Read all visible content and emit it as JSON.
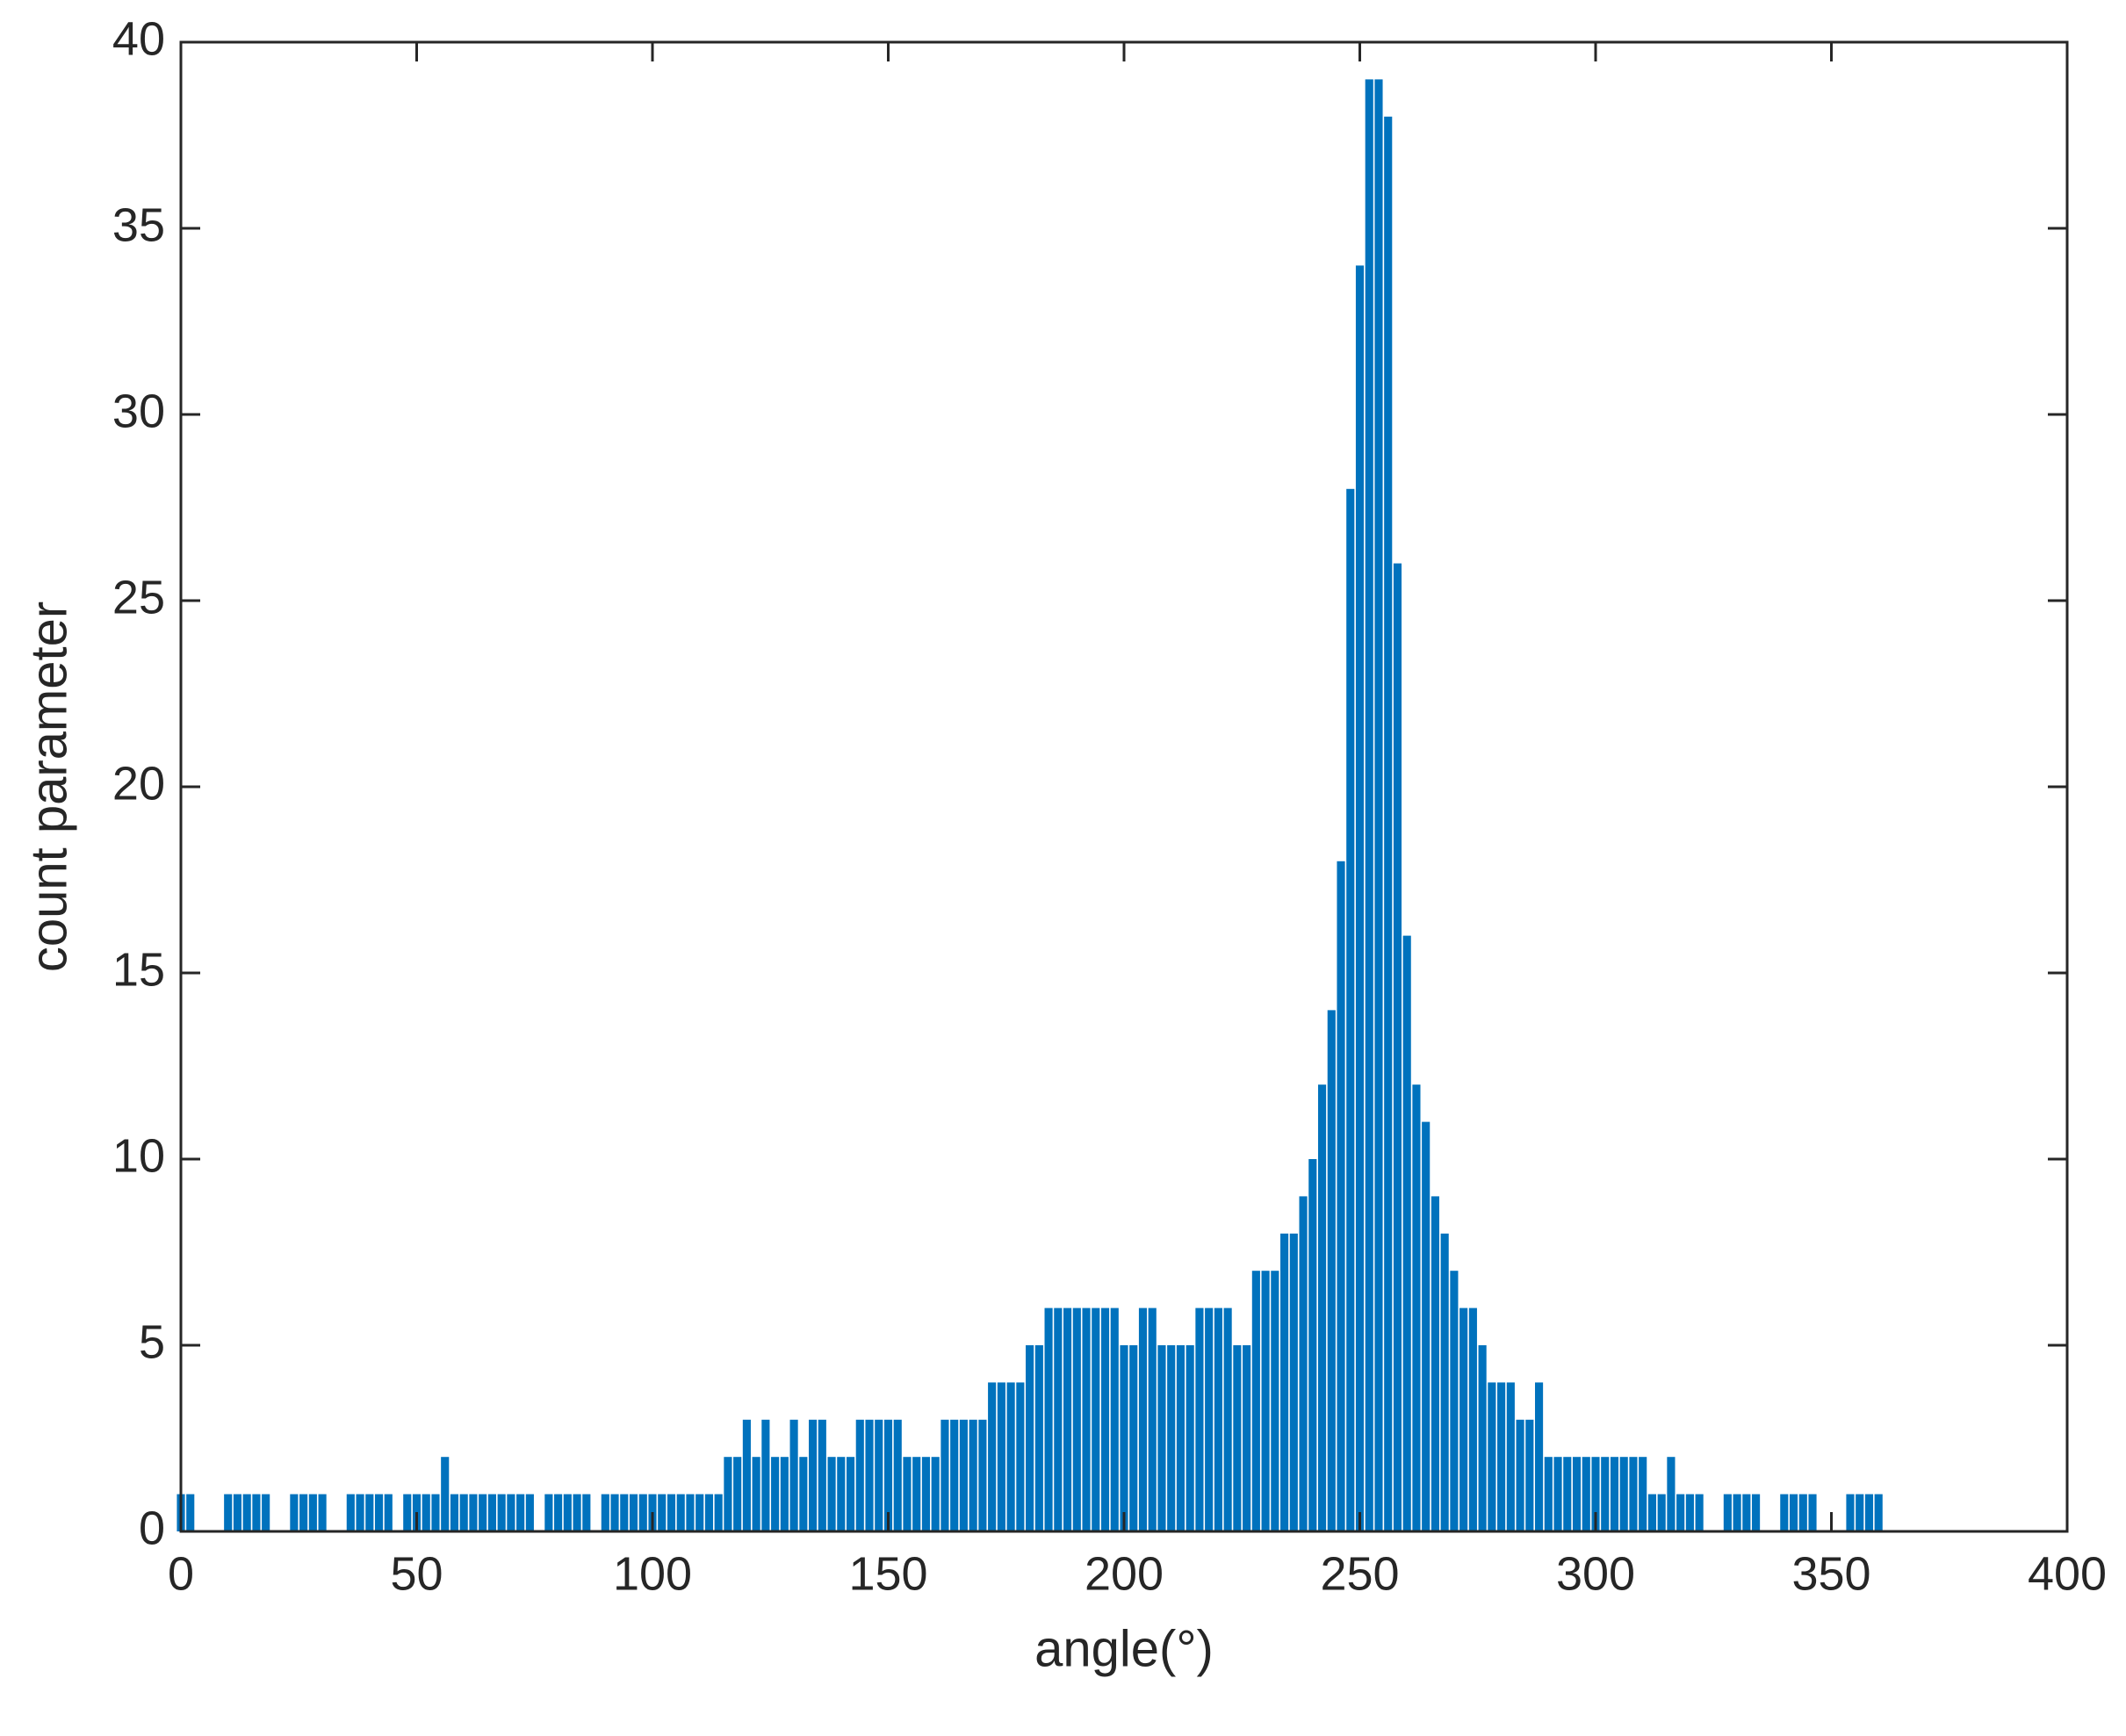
{
  "chart_data": {
    "type": "stem",
    "x_label": "angle(°)",
    "y_label": "count parameter",
    "xlim": [
      0,
      400
    ],
    "xticks": [
      0,
      50,
      100,
      150,
      200,
      250,
      300,
      350,
      400
    ],
    "ylim": [
      0,
      40
    ],
    "yticks": [
      0,
      5,
      10,
      15,
      20,
      25,
      30,
      35,
      40
    ],
    "color": "#0072bd",
    "x": [
      0,
      2,
      4,
      6,
      8,
      10,
      12,
      14,
      16,
      18,
      20,
      22,
      24,
      26,
      28,
      30,
      32,
      34,
      36,
      38,
      40,
      42,
      44,
      46,
      48,
      50,
      52,
      54,
      56,
      58,
      60,
      62,
      64,
      66,
      68,
      70,
      72,
      74,
      76,
      78,
      80,
      82,
      84,
      86,
      88,
      90,
      92,
      94,
      96,
      98,
      100,
      102,
      104,
      106,
      108,
      110,
      112,
      114,
      116,
      118,
      120,
      122,
      124,
      126,
      128,
      130,
      132,
      134,
      136,
      138,
      140,
      142,
      144,
      146,
      148,
      150,
      152,
      154,
      156,
      158,
      160,
      162,
      164,
      166,
      168,
      170,
      172,
      174,
      176,
      178,
      180,
      182,
      184,
      186,
      188,
      190,
      192,
      194,
      196,
      198,
      200,
      202,
      204,
      206,
      208,
      210,
      212,
      214,
      216,
      218,
      220,
      222,
      224,
      226,
      228,
      230,
      232,
      234,
      236,
      238,
      240,
      242,
      244,
      246,
      248,
      250,
      252,
      254,
      256,
      258,
      260,
      262,
      264,
      266,
      268,
      270,
      272,
      274,
      276,
      278,
      280,
      282,
      284,
      286,
      288,
      290,
      292,
      294,
      296,
      298,
      300,
      302,
      304,
      306,
      308,
      310,
      312,
      314,
      316,
      318,
      320,
      322,
      324,
      326,
      328,
      330,
      332,
      334,
      336,
      338,
      340,
      342,
      344,
      346,
      348,
      350,
      352,
      354,
      356,
      358,
      360
    ],
    "values": [
      1,
      1,
      0,
      0,
      0,
      1,
      1,
      1,
      1,
      1,
      0,
      0,
      1,
      1,
      1,
      1,
      0,
      0,
      1,
      1,
      1,
      1,
      1,
      0,
      1,
      1,
      1,
      1,
      2,
      1,
      1,
      1,
      1,
      1,
      1,
      1,
      1,
      1,
      0,
      1,
      1,
      1,
      1,
      1,
      0,
      1,
      1,
      1,
      1,
      1,
      1,
      1,
      1,
      1,
      1,
      1,
      1,
      1,
      2,
      2,
      3,
      2,
      3,
      2,
      2,
      3,
      2,
      3,
      3,
      2,
      2,
      2,
      3,
      3,
      3,
      3,
      3,
      2,
      2,
      2,
      2,
      3,
      3,
      3,
      3,
      3,
      4,
      4,
      4,
      4,
      5,
      5,
      6,
      6,
      6,
      6,
      6,
      6,
      6,
      6,
      5,
      5,
      6,
      6,
      5,
      5,
      5,
      5,
      6,
      6,
      6,
      6,
      5,
      5,
      7,
      7,
      7,
      8,
      8,
      9,
      10,
      12,
      14,
      18,
      28,
      34,
      39,
      39,
      38,
      26,
      16,
      12,
      11,
      9,
      8,
      7,
      6,
      6,
      5,
      4,
      4,
      4,
      3,
      3,
      4,
      2,
      2,
      2,
      2,
      2,
      2,
      2,
      2,
      2,
      2,
      2,
      1,
      1,
      2,
      1,
      1,
      1,
      0,
      0,
      1,
      1,
      1,
      1,
      0,
      0,
      1,
      1,
      1,
      1,
      0,
      0,
      0,
      1,
      1,
      1,
      1
    ]
  }
}
